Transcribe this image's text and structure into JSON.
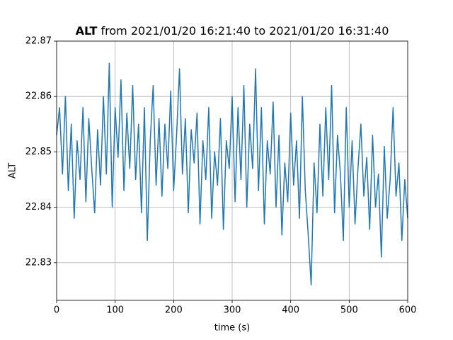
{
  "chart_data": {
    "type": "line",
    "title_variable": "ALT",
    "title": "from 2021/01/20 16:21:40 to 2021/01/20 16:31:40",
    "x_label": "time (s)",
    "y_label": "ALT",
    "xlim": [
      0,
      600
    ],
    "xticks": [
      0,
      100,
      200,
      300,
      400,
      500,
      600
    ],
    "ylim": [
      22.8232,
      22.87
    ],
    "yticks": [
      22.83,
      22.84,
      22.85,
      22.86,
      22.87
    ],
    "grid": true,
    "series": [
      {
        "color": "#1f77b4",
        "x": [
          0,
          5,
          10,
          15,
          20,
          25,
          30,
          35,
          40,
          45,
          50,
          55,
          60,
          65,
          70,
          75,
          80,
          85,
          90,
          95,
          100,
          105,
          110,
          115,
          120,
          125,
          130,
          135,
          140,
          145,
          150,
          155,
          160,
          165,
          170,
          175,
          180,
          185,
          190,
          195,
          200,
          205,
          210,
          215,
          220,
          225,
          230,
          235,
          240,
          245,
          250,
          255,
          260,
          265,
          270,
          275,
          280,
          285,
          290,
          295,
          300,
          305,
          310,
          315,
          320,
          325,
          330,
          335,
          340,
          345,
          350,
          355,
          360,
          365,
          370,
          375,
          380,
          385,
          390,
          395,
          400,
          405,
          410,
          415,
          420,
          425,
          430,
          435,
          440,
          445,
          450,
          455,
          460,
          465,
          470,
          475,
          480,
          485,
          490,
          495,
          500,
          505,
          510,
          515,
          520,
          525,
          530,
          535,
          540,
          545,
          550,
          555,
          560,
          565,
          570,
          575,
          580,
          585,
          590,
          595,
          600
        ],
        "values": [
          22.853,
          22.858,
          22.846,
          22.86,
          22.843,
          22.855,
          22.838,
          22.852,
          22.845,
          22.858,
          22.841,
          22.856,
          22.847,
          22.839,
          22.854,
          22.844,
          22.86,
          22.846,
          22.866,
          22.84,
          22.858,
          22.849,
          22.863,
          22.843,
          22.857,
          22.847,
          22.862,
          22.845,
          22.855,
          22.839,
          22.858,
          22.834,
          22.852,
          22.862,
          22.844,
          22.856,
          22.842,
          22.855,
          22.847,
          22.861,
          22.843,
          22.853,
          22.865,
          22.846,
          22.856,
          22.839,
          22.854,
          22.848,
          22.857,
          22.837,
          22.852,
          22.845,
          22.858,
          22.838,
          22.85,
          22.844,
          22.856,
          22.836,
          22.852,
          22.847,
          22.86,
          22.841,
          22.858,
          22.845,
          22.862,
          22.84,
          22.855,
          22.847,
          22.865,
          22.843,
          22.858,
          22.837,
          22.852,
          22.846,
          22.859,
          22.84,
          22.853,
          22.835,
          22.848,
          22.841,
          22.857,
          22.844,
          22.852,
          22.838,
          22.86,
          22.843,
          22.835,
          22.826,
          22.848,
          22.839,
          22.855,
          22.842,
          22.858,
          22.845,
          22.862,
          22.839,
          22.853,
          22.846,
          22.834,
          22.858,
          22.84,
          22.852,
          22.837,
          22.847,
          22.855,
          22.842,
          22.849,
          22.836,
          22.853,
          22.84,
          22.846,
          22.831,
          22.851,
          22.838,
          22.845,
          22.858,
          22.842,
          22.848,
          22.834,
          22.845,
          22.838
        ]
      }
    ]
  }
}
